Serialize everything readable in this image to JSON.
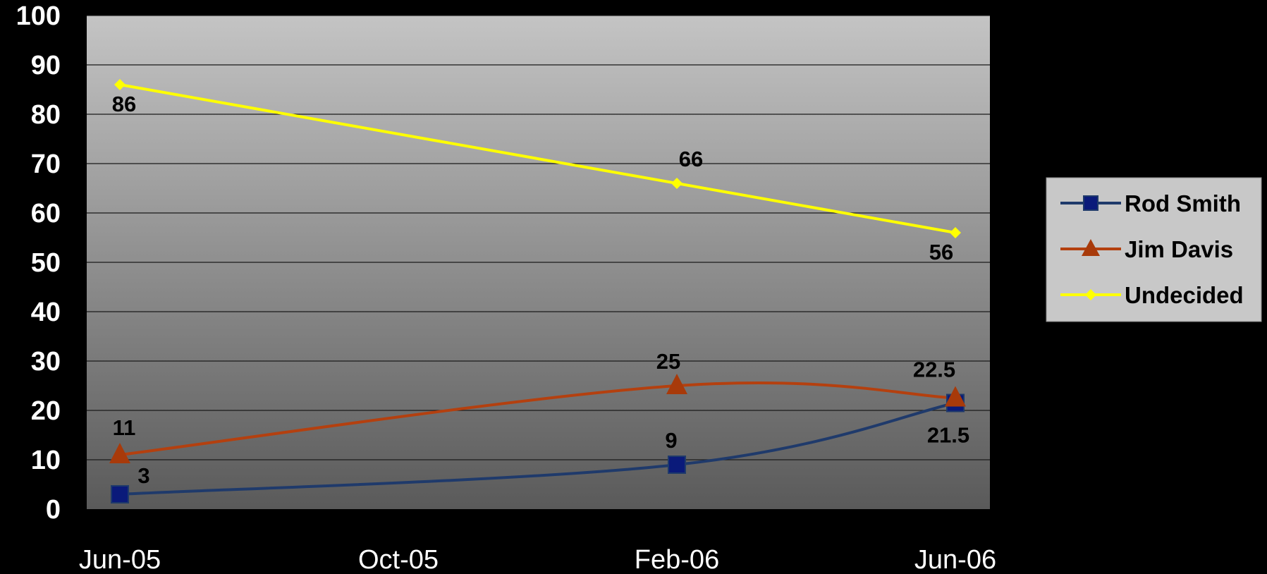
{
  "chart_data": {
    "type": "line",
    "title": "",
    "xlabel": "",
    "ylabel": "",
    "x_ticks": [
      "Jun-05",
      "Oct-05",
      "Feb-06",
      "Jun-06"
    ],
    "ylim": [
      0,
      100
    ],
    "y_ticks": [
      0,
      10,
      20,
      30,
      40,
      50,
      60,
      70,
      80,
      90,
      100
    ],
    "grid": true,
    "legend_position": "right",
    "series": [
      {
        "name": "Rod Smith",
        "color": "#1f3a6b",
        "marker": "square",
        "marker_color": "#0a1a7a",
        "points": [
          {
            "x": "Jun-05",
            "y": 3,
            "label": "3"
          },
          {
            "x": "Feb-06",
            "y": 9,
            "label": "9"
          },
          {
            "x": "Jun-06",
            "y": 21.5,
            "label": "21.5"
          }
        ]
      },
      {
        "name": "Jim Davis",
        "color": "#b4400f",
        "marker": "triangle",
        "marker_color": "#a83a0a",
        "points": [
          {
            "x": "Jun-05",
            "y": 11,
            "label": "11"
          },
          {
            "x": "Feb-06",
            "y": 25,
            "label": "25"
          },
          {
            "x": "Jun-06",
            "y": 22.5,
            "label": "22.5"
          }
        ]
      },
      {
        "name": "Undecided",
        "color": "#ffff00",
        "marker": "diamond",
        "marker_color": "#ffff00",
        "points": [
          {
            "x": "Jun-05",
            "y": 86,
            "label": "86"
          },
          {
            "x": "Feb-06",
            "y": 66,
            "label": "66"
          },
          {
            "x": "Jun-06",
            "y": 56,
            "label": "56"
          }
        ]
      }
    ]
  }
}
